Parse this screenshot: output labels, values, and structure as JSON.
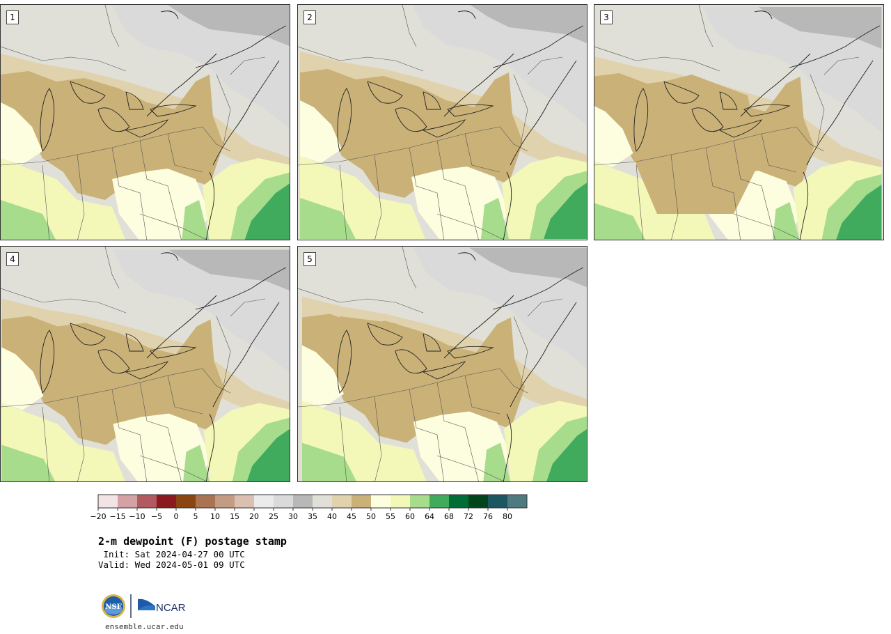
{
  "figure": {
    "title": "2-m dewpoint (F) postage stamp",
    "init_line": " Init: Sat 2024-04-27 00 UTC",
    "valid_line": "Valid: Wed 2024-05-01 09 UTC",
    "site": "ensemble.ucar.edu",
    "logo_nsf": "NSF",
    "logo_ncar": "NCAR"
  },
  "members": [
    {
      "label": "1"
    },
    {
      "label": "2"
    },
    {
      "label": "3"
    },
    {
      "label": "4"
    },
    {
      "label": "5"
    }
  ],
  "colorbar": {
    "ticks": [
      "−20",
      "−15",
      "−10",
      "−5",
      "0",
      "5",
      "10",
      "15",
      "20",
      "25",
      "30",
      "35",
      "40",
      "45",
      "50",
      "55",
      "60",
      "64",
      "68",
      "72",
      "76",
      "80"
    ],
    "colors": [
      "#f2e4e4",
      "#d4a2a4",
      "#b15a60",
      "#8b1a1e",
      "#8b4513",
      "#aa7452",
      "#c49c83",
      "#dbbfb1",
      "#ebebeb",
      "#dadada",
      "#b8b8b8",
      "#e0e0d8",
      "#e0d2ac",
      "#c9b178",
      "#fdfde0",
      "#f3f8b8",
      "#a7dc8c",
      "#41ab5d",
      "#006d36",
      "#00441b",
      "#1c5660",
      "#4e7a80"
    ]
  },
  "palette": {
    "v30": "#b8b8b8",
    "v35": "#e0e0d8",
    "v40": "#e0d2ac",
    "v45": "#c9b178",
    "v50": "#fdfde0",
    "v55": "#f3f8b8",
    "v60": "#a7dc8c",
    "v64": "#41ab5d",
    "v25": "#dadada"
  }
}
